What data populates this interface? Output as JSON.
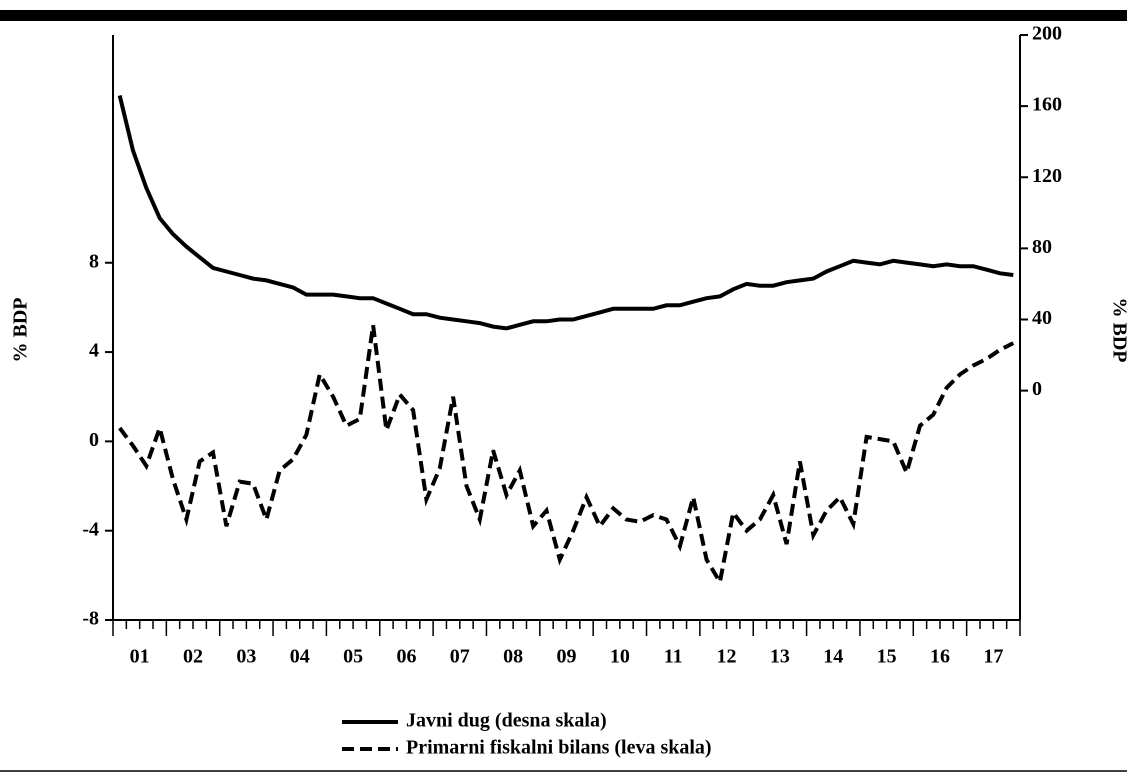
{
  "chart_data": {
    "type": "line",
    "categories": [
      null,
      "01",
      null,
      null,
      null,
      "02",
      null,
      null,
      null,
      "03",
      null,
      null,
      null,
      "04",
      null,
      null,
      null,
      "05",
      null,
      null,
      null,
      "06",
      null,
      null,
      null,
      "07",
      null,
      null,
      null,
      "08",
      null,
      null,
      null,
      "09",
      null,
      null,
      null,
      "10",
      null,
      null,
      null,
      "11",
      null,
      null,
      null,
      "12",
      null,
      null,
      null,
      "13",
      null,
      null,
      null,
      "14",
      null,
      null,
      null,
      "15",
      null,
      null,
      null,
      "16",
      null,
      null,
      null,
      "17",
      null,
      null
    ],
    "ylabel": "% BDP",
    "y2label": "% BDP",
    "ylim": [
      -8,
      18.2
    ],
    "yticks": [
      -8,
      -4,
      0,
      4,
      8
    ],
    "y2lim": [
      -129,
      200
    ],
    "y2ticks": [
      0,
      40,
      80,
      120,
      160,
      200
    ],
    "series": [
      {
        "name": "Javni dug (desna skala)",
        "color": "#000000",
        "dash": "solid",
        "axis": "y2",
        "values": [
          166,
          135,
          114,
          97,
          88,
          81,
          75,
          69,
          67,
          65,
          63,
          62,
          60,
          58,
          54,
          54,
          54,
          53,
          52,
          52,
          49,
          46,
          43,
          43,
          41,
          40,
          39,
          38,
          36,
          35,
          37,
          39,
          39,
          40,
          40,
          42,
          44,
          46,
          46,
          46,
          46,
          48,
          48,
          50,
          52,
          53,
          57,
          60,
          59,
          59,
          61,
          62,
          63,
          67,
          70,
          73,
          72,
          71,
          73,
          72,
          71,
          70,
          71,
          70,
          70,
          68,
          66,
          65
        ]
      },
      {
        "name": "Primarni fiskalni bilans (leva skala)",
        "color": "#000000",
        "dash": "dashed",
        "values": [
          0.6,
          -0.2,
          -1.1,
          0.6,
          -1.7,
          -3.5,
          -0.9,
          -0.5,
          -3.8,
          -1.8,
          -1.9,
          -3.5,
          -1.3,
          -0.8,
          0.3,
          3.0,
          2.0,
          0.7,
          1.0,
          5.2,
          0.5,
          2.1,
          1.4,
          -2.6,
          -1.2,
          2.0,
          -2.0,
          -3.5,
          -0.4,
          -2.4,
          -1.3,
          -3.8,
          -3.1,
          -5.3,
          -4.0,
          -2.5,
          -3.8,
          -3.0,
          -3.5,
          -3.6,
          -3.3,
          -3.5,
          -4.7,
          -2.5,
          -5.3,
          -6.3,
          -3.2,
          -4.0,
          -3.5,
          -2.4,
          -4.6,
          -0.9,
          -4.2,
          -3.1,
          -2.5,
          -3.7,
          0.2,
          0.1,
          0.0,
          -1.4,
          0.7,
          1.2,
          2.4,
          3.0,
          3.4,
          3.7,
          4.1,
          4.4
        ]
      }
    ]
  }
}
